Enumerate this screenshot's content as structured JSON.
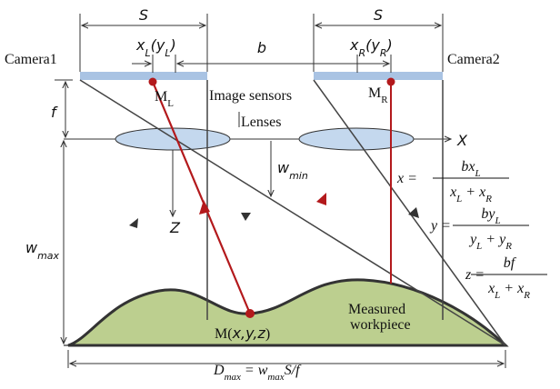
{
  "labels": {
    "s_left": "S",
    "s_right": "S",
    "b": "b",
    "xl": [
      "x",
      "L",
      "(y",
      "L",
      ")"
    ],
    "xr": [
      "x",
      "R",
      "(y",
      "R",
      ")"
    ],
    "camera1": "Camera1",
    "camera2": "Camera2",
    "ml": [
      "M",
      "L"
    ],
    "mr": [
      "M",
      "R"
    ],
    "image_sensors": "Image sensors",
    "lenses": "Lenses",
    "f": "f",
    "x_axis": "X",
    "z_axis": "Z",
    "w_min": [
      "w",
      "min"
    ],
    "w_max": [
      "w",
      "max"
    ],
    "workpiece": [
      "Measured",
      "workpiece"
    ],
    "point": [
      "M(",
      "x,y,z",
      ")"
    ],
    "d_max": [
      "D",
      "max",
      " = w",
      "max",
      "S/f"
    ]
  },
  "formulas": [
    {
      "lhs": "x =",
      "num": [
        "bx",
        "L"
      ],
      "den": [
        "x",
        "L",
        " + x",
        "R"
      ]
    },
    {
      "lhs": "y =",
      "num": [
        "by",
        "L"
      ],
      "den": [
        "y",
        "L",
        " + y",
        "R"
      ]
    },
    {
      "lhs": "z =",
      "num": [
        "bf"
      ],
      "den": [
        "x",
        "L",
        " + x",
        "R"
      ]
    }
  ]
}
